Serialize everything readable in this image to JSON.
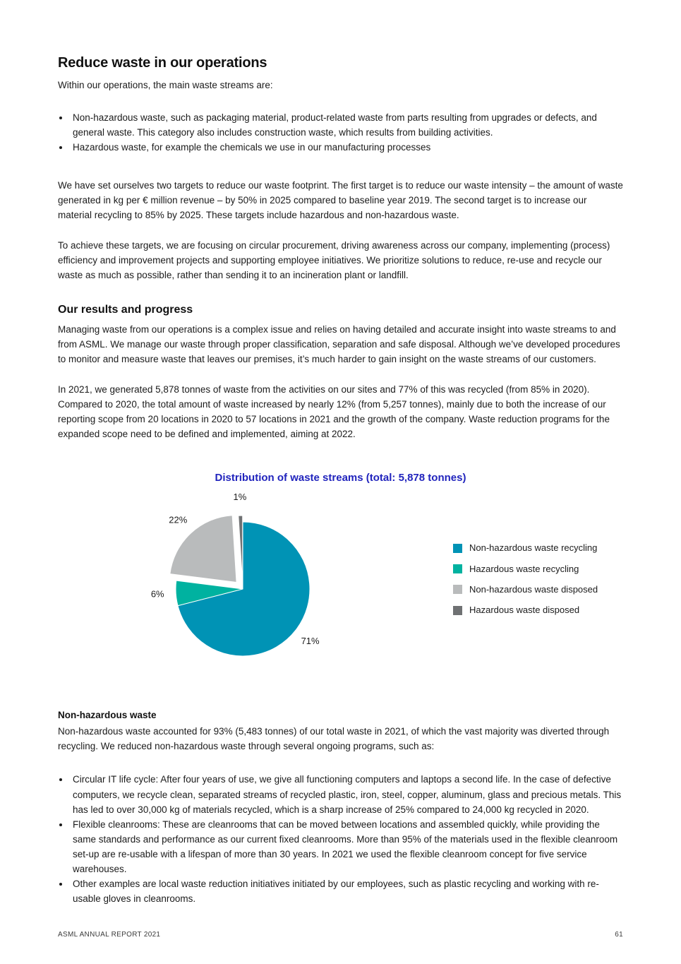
{
  "colors": {
    "accent_blue": "#2124bd",
    "body_text": "#1b1b1b"
  },
  "header": {
    "title": "Reduce waste in our operations"
  },
  "intro": {
    "lead": "Within our operations, the main waste streams are:",
    "bullets": [
      "Non-hazardous waste, such as packaging material, product-related waste from parts resulting from upgrades or defects, and general waste. This category also includes construction waste, which results from building activities.",
      "Hazardous waste, for example the chemicals we use in our manufacturing processes"
    ]
  },
  "paragraphs": {
    "targets": "We have set ourselves two targets to reduce our waste footprint. The first target is to reduce our waste intensity – the amount of waste generated in kg per € million revenue – by 50% in 2025 compared to baseline year 2019. The second target is to increase our material recycling to 85% by 2025. These targets include hazardous and non-hazardous waste.",
    "achieve": "To achieve these targets, we are focusing on circular procurement, driving awareness across our company, implementing (process) efficiency and improvement projects and supporting employee initiatives. We prioritize solutions to reduce, re-use and recycle our waste as much as possible, rather than sending it to an incineration plant or landfill."
  },
  "results": {
    "heading": "Our results and progress",
    "para1": "Managing waste from our operations is a complex issue and relies on having detailed and accurate insight into waste streams to and from ASML. We manage our waste through proper classification, separation and safe disposal. Although we’ve developed procedures to monitor and measure waste that leaves our premises, it’s much harder to gain insight on the waste streams of our customers.",
    "para2": "In 2021, we generated 5,878 tonnes of waste from the activities on our sites and 77% of this was recycled (from 85% in 2020). Compared to 2020, the total amount of waste increased by nearly 12% (from 5,257 tonnes), mainly due to both the increase of our reporting scope from 20 locations in 2020 to 57 locations in 2021 and the growth of the company. Waste reduction programs for the expanded scope need to be defined and implemented, aiming at 2022."
  },
  "chart_data": {
    "type": "pie",
    "title": "Distribution of waste streams (total: 5,878 tonnes)",
    "total_tonnes": "5,878",
    "values_unit": "%",
    "start_angle": 0,
    "direction": "clockwise",
    "legend_position": "right",
    "slices": [
      {
        "label": "Non-hazardous waste recycling",
        "value": 71,
        "color": "#0093b5",
        "explode": 0
      },
      {
        "label": "Hazardous waste recycling",
        "value": 6,
        "color": "#00b2a0",
        "explode": 0
      },
      {
        "label": "Non-hazardous waste disposed",
        "value": 22,
        "color": "#b9bbbc",
        "explode": 13
      },
      {
        "label": "Hazardous waste disposed",
        "value": 1,
        "color": "#6f7173",
        "explode": 9
      }
    ]
  },
  "nonhazardous": {
    "heading": "Non-hazardous waste",
    "para": "Non-hazardous waste accounted for 93% (5,483 tonnes) of our total waste in 2021, of which the vast majority was diverted through recycling. We reduced non-hazardous waste through several ongoing programs, such as:",
    "bullets": [
      "Circular IT life cycle: After four years of use, we give all functioning computers and laptops a second life. In the case of defective computers, we recycle clean, separated streams of recycled plastic, iron, steel, copper, aluminum, glass and precious metals. This has led to over 30,000 kg of materials recycled, which is a sharp increase of 25% compared to 24,000 kg recycled in 2020.",
      "Flexible cleanrooms: These are cleanrooms that can be moved between locations and assembled quickly, while providing the same standards and performance as our current fixed cleanrooms. More than 95% of the materials used in the flexible cleanroom set-up are re-usable with a lifespan of more than 30 years. In 2021 we used the flexible cleanroom concept for five service warehouses.",
      "Other examples are local waste reduction initiatives initiated by our employees, such as plastic recycling and working with re-usable gloves in cleanrooms."
    ]
  },
  "footer": {
    "report_name": "ASML ANNUAL REPORT 2021",
    "page_number": "61"
  }
}
